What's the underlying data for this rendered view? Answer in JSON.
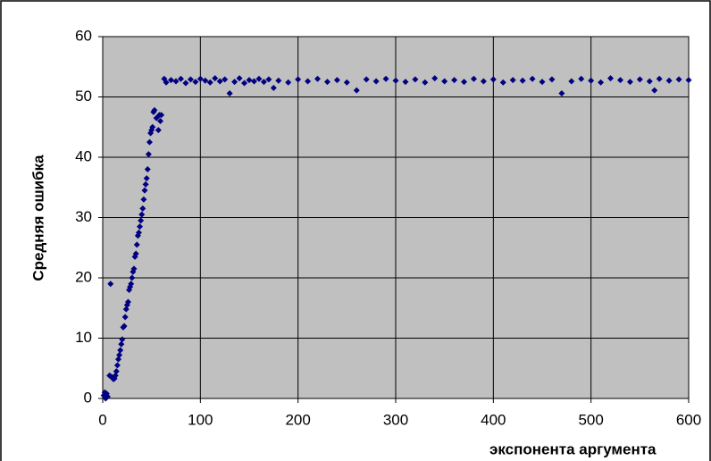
{
  "chart_data": {
    "type": "scatter",
    "y_label": "Средняя ошибка",
    "x_label": "экспонента аргумента",
    "xlim": [
      0,
      600
    ],
    "xticks": [
      0,
      100,
      200,
      300,
      400,
      500,
      600
    ],
    "ylim": [
      0,
      60
    ],
    "yticks": [
      0,
      10,
      20,
      30,
      40,
      50,
      60
    ],
    "grid": true,
    "background": "#c0c0c0",
    "series": [
      {
        "color": "#000080",
        "x": [
          1,
          2,
          3,
          4,
          5,
          7,
          8,
          9,
          10,
          11,
          12,
          13,
          14,
          15,
          16,
          17,
          18,
          19,
          20,
          21,
          22,
          23,
          24,
          25,
          26,
          27,
          28,
          29,
          30,
          31,
          32,
          33,
          34,
          35,
          36,
          37,
          38,
          39,
          40,
          41,
          42,
          43,
          44,
          45,
          46,
          47,
          48,
          49,
          50,
          51,
          52,
          53,
          55,
          57,
          58,
          59,
          60,
          63,
          65,
          70,
          75,
          80,
          85,
          90,
          95,
          100,
          105,
          110,
          115,
          120,
          125,
          130,
          135,
          140,
          145,
          150,
          155,
          160,
          165,
          170,
          175,
          180,
          190,
          200,
          210,
          220,
          230,
          240,
          250,
          260,
          270,
          280,
          290,
          300,
          310,
          320,
          330,
          340,
          350,
          360,
          370,
          380,
          390,
          400,
          410,
          420,
          430,
          440,
          450,
          460,
          470,
          480,
          490,
          500,
          510,
          520,
          530,
          540,
          550,
          560,
          565,
          570,
          580,
          590,
          600
        ],
        "values": [
          0.5,
          1,
          0,
          0.8,
          0.3,
          3.8,
          19,
          3.6,
          3.4,
          3.2,
          3.3,
          3.8,
          4.5,
          5.5,
          6.5,
          7.2,
          8,
          9,
          9.8,
          11.8,
          12,
          13.5,
          14.8,
          15.5,
          16,
          18,
          18.5,
          19,
          20,
          21,
          21.5,
          23.5,
          24,
          25.5,
          27,
          27.5,
          28.5,
          29.5,
          30.5,
          31.5,
          33,
          34.5,
          35.5,
          36.5,
          38,
          40.5,
          42.5,
          44,
          44.5,
          45,
          47.5,
          47.8,
          46.5,
          44.5,
          47,
          46,
          47,
          53,
          52.4,
          52.8,
          52.6,
          53,
          52.3,
          52.9,
          52.5,
          53,
          52.7,
          52.4,
          53.1,
          52.6,
          52.9,
          50.6,
          52.5,
          53.1,
          52.3,
          52.8,
          52.6,
          53,
          52.5,
          52.9,
          51.5,
          52.7,
          52.4,
          52.9,
          52.6,
          53,
          52.5,
          52.8,
          52.4,
          51.1,
          52.9,
          52.6,
          53,
          52.7,
          52.5,
          52.9,
          52.4,
          53.1,
          52.6,
          52.8,
          52.5,
          53,
          52.6,
          52.9,
          52.4,
          52.8,
          52.7,
          53,
          52.5,
          52.9,
          50.6,
          52.6,
          53,
          52.7,
          52.4,
          53.1,
          52.8,
          52.5,
          52.9,
          52.6,
          51.1,
          53,
          52.7,
          52.9,
          52.8
        ]
      }
    ]
  }
}
